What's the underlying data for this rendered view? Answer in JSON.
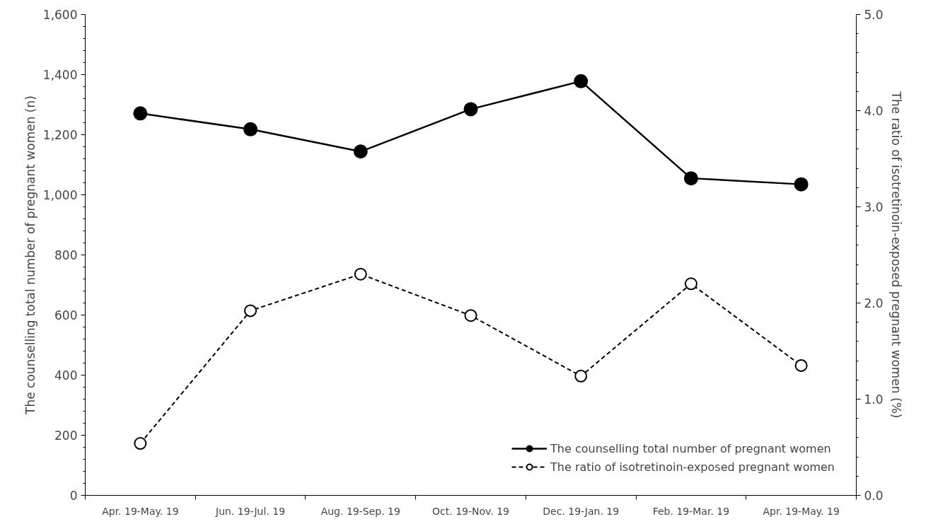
{
  "chart_data": {
    "type": "line",
    "categories": [
      "Apr. 19-May. 19",
      "Jun. 19-Jul. 19",
      "Aug. 19-Sep. 19",
      "Oct. 19-Nov. 19",
      "Dec. 19-Jan. 19",
      "Feb. 19-Mar. 19",
      "Apr. 19-May. 19"
    ],
    "ylabel": "The counselling total number of pregnant women (n)",
    "y2label": "The ratio of isotretinoin-exposed pregnant women (%)",
    "ylim": [
      0,
      1600
    ],
    "yticks": [
      {
        "value": 0,
        "label": "0"
      },
      {
        "value": 200,
        "label": "200"
      },
      {
        "value": 400,
        "label": "400"
      },
      {
        "value": 600,
        "label": "600"
      },
      {
        "value": 800,
        "label": "800"
      },
      {
        "value": 1000,
        "label": "1,000"
      },
      {
        "value": 1200,
        "label": "1,200"
      },
      {
        "value": 1400,
        "label": "1,400"
      },
      {
        "value": 1600,
        "label": "1,600"
      }
    ],
    "y2lim": [
      0,
      5
    ],
    "y2ticks": [
      {
        "value": 0,
        "label": "0.0"
      },
      {
        "value": 1,
        "label": "1.0"
      },
      {
        "value": 2,
        "label": "2.0"
      },
      {
        "value": 3,
        "label": "3.0"
      },
      {
        "value": 4,
        "label": "4.0"
      },
      {
        "value": 5,
        "label": "5.0"
      }
    ],
    "series": [
      {
        "name": "The counselling total number of pregnant women",
        "color": "#000000",
        "line_style": "solid",
        "values": [
          1271,
          1218,
          1144,
          1285,
          1378,
          1055,
          1035
        ]
      },
      {
        "name": "The ratio of isotretinoin-exposed pregnant women",
        "color": "#000000",
        "line_style": "dashed",
        "axis": "y2",
        "values": [
          0.54,
          1.92,
          2.3,
          1.87,
          1.24,
          2.2,
          1.35
        ]
      }
    ],
    "marker": "circle",
    "grid": false,
    "legend": "bottom right"
  }
}
